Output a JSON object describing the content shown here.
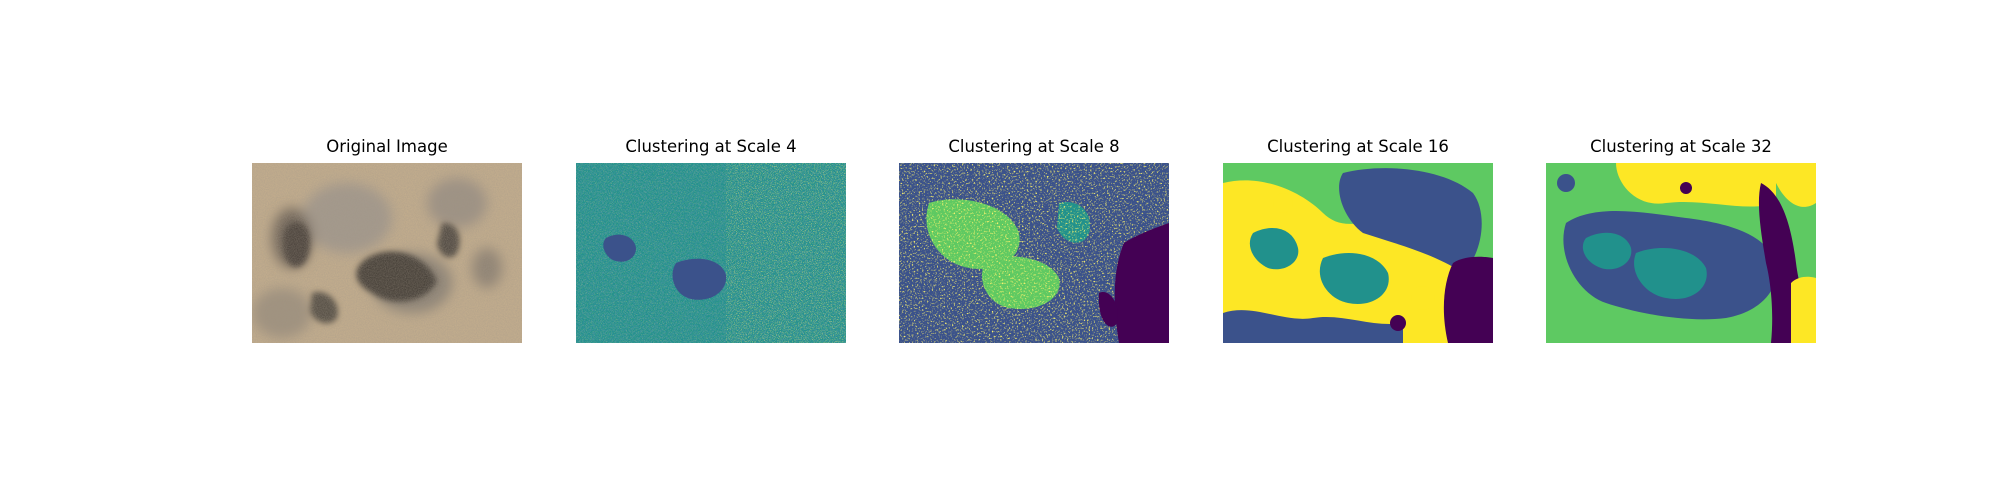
{
  "panels": [
    {
      "title": "Original Image"
    },
    {
      "title": "Clustering at Scale 4"
    },
    {
      "title": "Clustering at Scale 8"
    },
    {
      "title": "Clustering at Scale 16"
    },
    {
      "title": "Clustering at Scale 32"
    }
  ],
  "colors": {
    "viridis_purple": "#440154",
    "viridis_blue": "#3b528b",
    "viridis_teal": "#21918c",
    "viridis_green": "#5ec962",
    "viridis_yellow": "#fde725",
    "ground_sand": "#c8b291"
  }
}
